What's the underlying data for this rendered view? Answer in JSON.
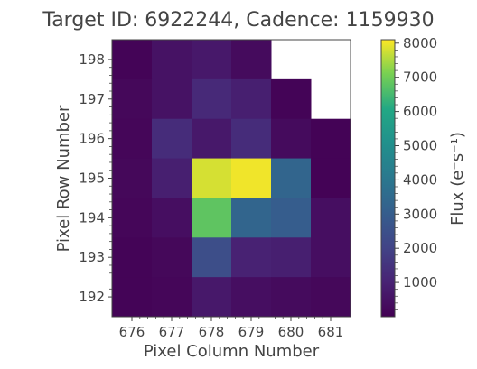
{
  "chart_data": {
    "type": "heatmap",
    "title": "Target ID: 6922244, Cadence: 1159930",
    "xlabel": "Pixel Column Number",
    "ylabel": "Pixel Row Number",
    "colorbar_label": "Flux (e⁻s⁻¹)",
    "colormap": "viridis",
    "x_ticks": [
      "676",
      "677",
      "678",
      "679",
      "680",
      "681"
    ],
    "y_ticks": [
      "192",
      "193",
      "194",
      "195",
      "196",
      "197",
      "198"
    ],
    "colorbar_ticks": [
      "1000",
      "2000",
      "3000",
      "4000",
      "5000",
      "6000",
      "7000",
      "8000"
    ],
    "color_range": [
      0,
      8100
    ],
    "x": [
      676,
      677,
      678,
      679,
      680,
      681
    ],
    "y": [
      198,
      197,
      196,
      195,
      194,
      193,
      192
    ],
    "values": [
      [
        100,
        500,
        700,
        300,
        null,
        null
      ],
      [
        200,
        500,
        1200,
        900,
        100,
        null
      ],
      [
        150,
        1300,
        700,
        1300,
        300,
        50
      ],
      [
        200,
        900,
        7800,
        8000,
        3300,
        50
      ],
      [
        150,
        400,
        6800,
        3300,
        3000,
        400
      ],
      [
        100,
        200,
        2400,
        1000,
        900,
        400
      ],
      [
        100,
        150,
        700,
        400,
        300,
        200
      ]
    ]
  }
}
